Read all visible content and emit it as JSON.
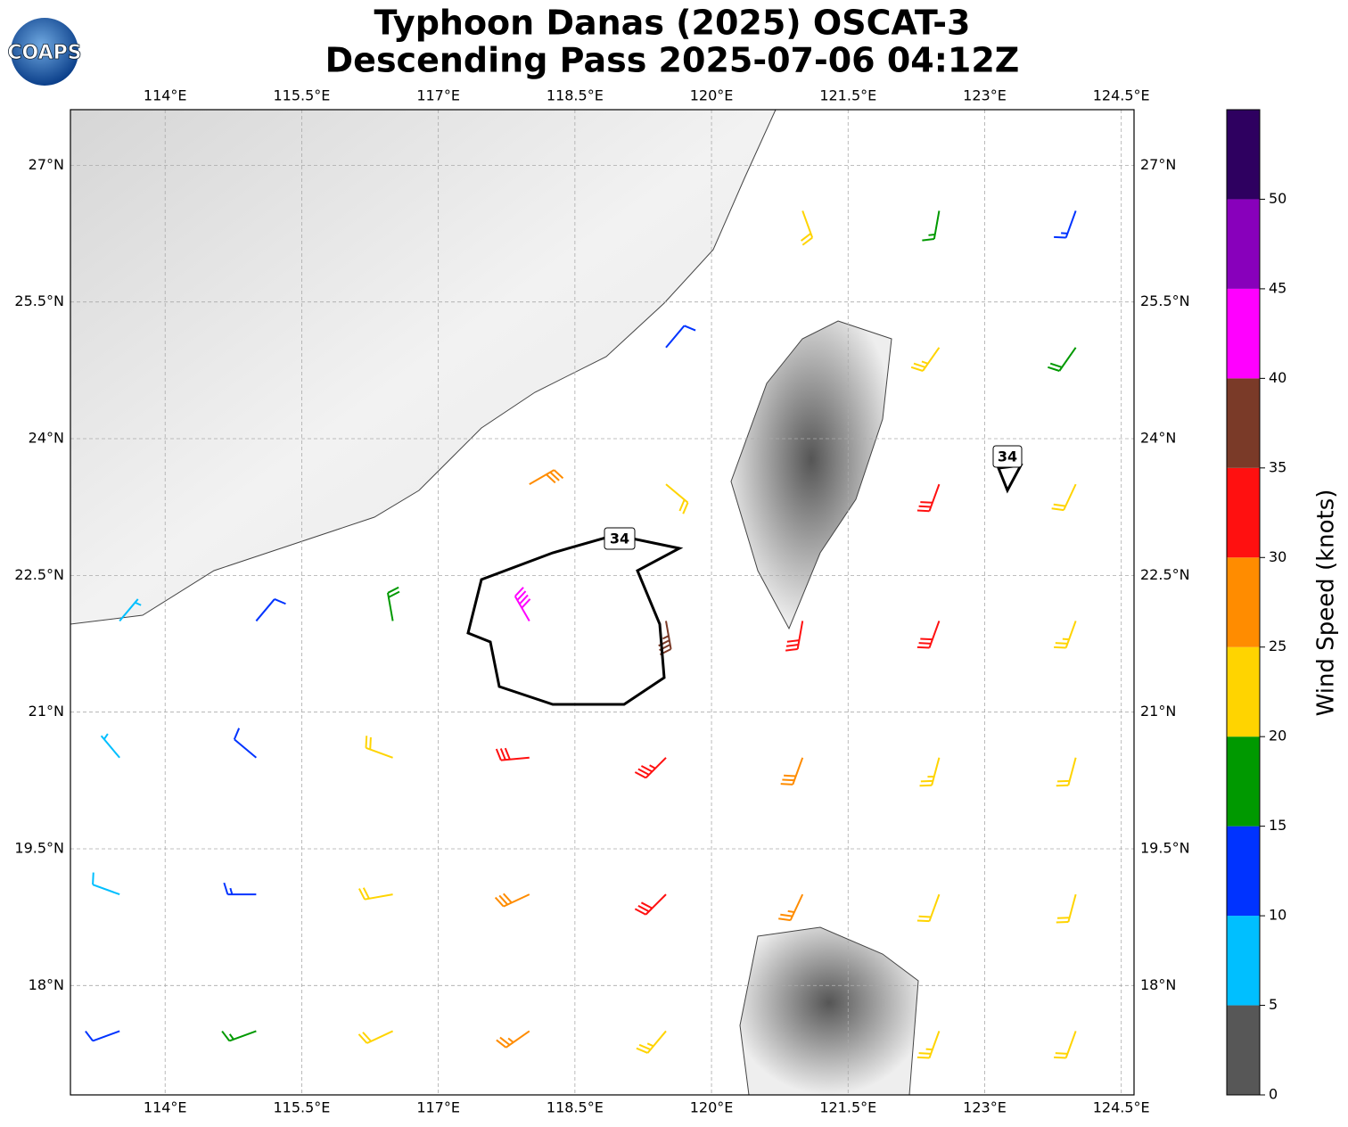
{
  "chart_data": {
    "type": "wind-barb-map",
    "logo": "COAPS",
    "title": [
      "Typhoon Danas (2025) OSCAT-3",
      "Descending Pass 2025-07-06 04:12Z"
    ],
    "xlim": [
      112.96,
      124.64
    ],
    "ylim": [
      16.8,
      27.61
    ],
    "xticks": [
      {
        "value": 114,
        "label": "114°E"
      },
      {
        "value": 115.5,
        "label": "115.5°E"
      },
      {
        "value": 117,
        "label": "117°E"
      },
      {
        "value": 118.5,
        "label": "118.5°E"
      },
      {
        "value": 120,
        "label": "120°E"
      },
      {
        "value": 121.5,
        "label": "121.5°E"
      },
      {
        "value": 123,
        "label": "123°E"
      },
      {
        "value": 124.5,
        "label": "124.5°E"
      }
    ],
    "yticks": [
      {
        "value": 18,
        "label": "18°N"
      },
      {
        "value": 19.5,
        "label": "19.5°N"
      },
      {
        "value": 21,
        "label": "21°N"
      },
      {
        "value": 22.5,
        "label": "22.5°N"
      },
      {
        "value": 24,
        "label": "24°N"
      },
      {
        "value": 25.5,
        "label": "25.5°N"
      },
      {
        "value": 27,
        "label": "27°N"
      }
    ],
    "grid": true,
    "contour_labels": [
      "34",
      "34"
    ],
    "barbs": {
      "lon": [
        113.5,
        115,
        116.5,
        118,
        119.5,
        122.5,
        124,
        113.5,
        115,
        116.5,
        118,
        119.5,
        121,
        122.5,
        124,
        113.5,
        115,
        116.5,
        118,
        119.5,
        121,
        122.5,
        124,
        113.5,
        115,
        116.5,
        118,
        119.5,
        121,
        122.5,
        124,
        118,
        119.5,
        122.5,
        124,
        119.5,
        122.5,
        124,
        121,
        122.5,
        124
      ],
      "lat": [
        17.5,
        17.5,
        17.5,
        17.5,
        17.5,
        17.5,
        17.5,
        19,
        19,
        19,
        19,
        19,
        19,
        19,
        19,
        20.5,
        20.5,
        20.5,
        20.5,
        20.5,
        20.5,
        20.5,
        20.5,
        22,
        22,
        22,
        22,
        22,
        22,
        22,
        22,
        23.5,
        23.5,
        23.5,
        23.5,
        25,
        25,
        25,
        26.5,
        26.5,
        26.5
      ],
      "speed": [
        12,
        17,
        21,
        27,
        24,
        24,
        22,
        8,
        13,
        20,
        29,
        31,
        26,
        21,
        21,
        7,
        12,
        22,
        31,
        33,
        28,
        23,
        22,
        7,
        10,
        18,
        42,
        37,
        30,
        30,
        23,
        28,
        22,
        31,
        22,
        11,
        23,
        18,
        21,
        16,
        13
      ],
      "direction": [
        250,
        250,
        245,
        235,
        220,
        200,
        200,
        290,
        270,
        260,
        245,
        225,
        205,
        200,
        195,
        320,
        310,
        290,
        265,
        225,
        200,
        195,
        195,
        40,
        40,
        350,
        330,
        170,
        190,
        200,
        200,
        60,
        130,
        200,
        205,
        40,
        215,
        215,
        160,
        190,
        200
      ]
    },
    "colorbar": {
      "label": "Wind Speed (knots)",
      "bounds": [
        0,
        5,
        10,
        15,
        20,
        25,
        30,
        35,
        40,
        45,
        50,
        55
      ],
      "colors": [
        "#575757",
        "#00bfff",
        "#0033ff",
        "#009900",
        "#ffd400",
        "#ff8c00",
        "#ff1010",
        "#7a3a28",
        "#ff00ff",
        "#8800bb",
        "#2e0060"
      ],
      "ticks": [
        0,
        5,
        10,
        15,
        20,
        25,
        30,
        35,
        40,
        45,
        50
      ]
    }
  }
}
